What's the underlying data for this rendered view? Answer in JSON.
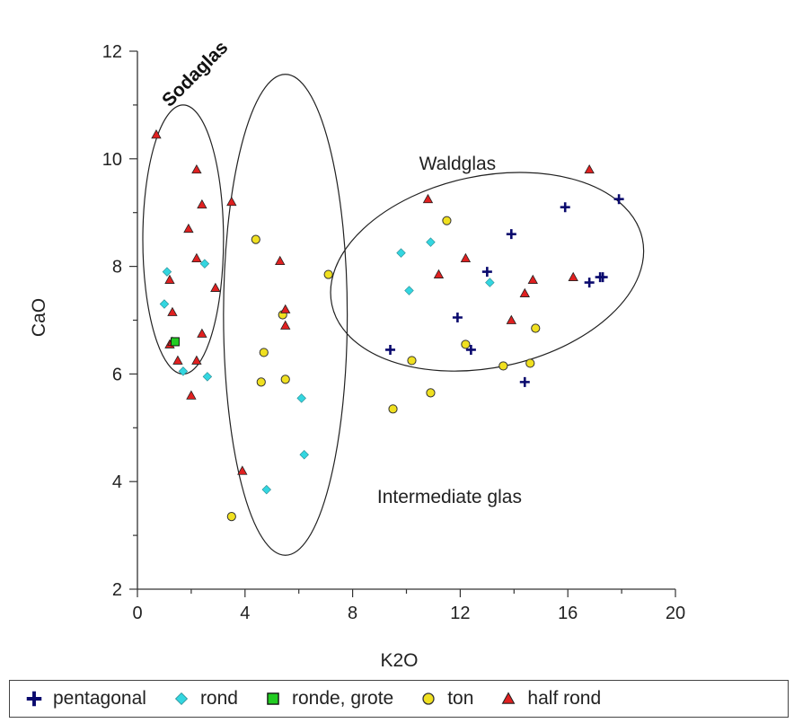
{
  "chart_data": {
    "type": "scatter",
    "xlabel": "K2O",
    "ylabel": "CaO",
    "xlim": [
      0,
      20
    ],
    "ylim": [
      2,
      12
    ],
    "x_ticks": [
      "0",
      "4",
      "8",
      "12",
      "16",
      "20"
    ],
    "y_ticks": [
      "2",
      "4",
      "6",
      "8",
      "10",
      "12"
    ],
    "grid": false,
    "legend_position": "bottom",
    "annotations": [
      {
        "text": "Sodaglas",
        "x": 2.3,
        "y": 11.5,
        "style": "bold-rotated"
      },
      {
        "text": "Waldglas",
        "x": 11.9,
        "y": 9.8
      },
      {
        "text": "Intermediate glas",
        "x": 11.6,
        "y": 3.6
      }
    ],
    "ellipses": [
      {
        "label": "Sodaglas",
        "cx": 1.7,
        "cy": 8.5,
        "rx": 1.5,
        "ry": 2.5
      },
      {
        "label": "Intermediate glas",
        "cx": 5.5,
        "cy": 7.1,
        "rx": 2.3,
        "ry": 4.47
      },
      {
        "label": "Waldglas",
        "cx": 13.0,
        "cy": 7.9,
        "rx": 5.9,
        "ry": 1.78,
        "angle_deg": -12
      }
    ],
    "series": [
      {
        "name": "pentagonal",
        "marker": "plus",
        "color": "#0a0a6e",
        "points": [
          [
            9.4,
            6.45
          ],
          [
            11.9,
            7.05
          ],
          [
            12.4,
            6.45
          ],
          [
            13.0,
            7.9
          ],
          [
            13.9,
            8.6
          ],
          [
            14.4,
            5.85
          ],
          [
            15.9,
            9.1
          ],
          [
            16.8,
            7.7
          ],
          [
            17.2,
            7.8
          ],
          [
            17.3,
            7.8
          ],
          [
            17.9,
            9.25
          ]
        ]
      },
      {
        "name": "rond",
        "marker": "diamond",
        "color": "#33d6e0",
        "points": [
          [
            1.0,
            7.3
          ],
          [
            1.1,
            7.9
          ],
          [
            1.7,
            6.05
          ],
          [
            2.5,
            8.05
          ],
          [
            2.6,
            5.95
          ],
          [
            4.8,
            3.85
          ],
          [
            6.1,
            5.55
          ],
          [
            6.2,
            4.5
          ],
          [
            9.8,
            8.25
          ],
          [
            10.1,
            7.55
          ],
          [
            10.9,
            8.45
          ],
          [
            13.1,
            7.7
          ]
        ]
      },
      {
        "name": "ronde, grote",
        "marker": "square",
        "color": "#22cc22",
        "points": [
          [
            1.4,
            6.6
          ]
        ]
      },
      {
        "name": "ton",
        "marker": "circle",
        "color": "#f0e020",
        "points": [
          [
            3.5,
            3.35
          ],
          [
            4.4,
            8.5
          ],
          [
            4.6,
            5.85
          ],
          [
            4.7,
            6.4
          ],
          [
            5.4,
            7.1
          ],
          [
            5.5,
            5.9
          ],
          [
            7.1,
            7.85
          ],
          [
            9.5,
            5.35
          ],
          [
            10.2,
            6.25
          ],
          [
            10.9,
            5.65
          ],
          [
            11.5,
            8.85
          ],
          [
            12.2,
            6.55
          ],
          [
            13.6,
            6.15
          ],
          [
            14.6,
            6.2
          ],
          [
            14.8,
            6.85
          ]
        ]
      },
      {
        "name": "half rond",
        "marker": "triangle",
        "color": "#e02020",
        "points": [
          [
            0.7,
            10.45
          ],
          [
            1.2,
            6.55
          ],
          [
            1.2,
            7.75
          ],
          [
            1.3,
            7.15
          ],
          [
            1.3,
            6.6
          ],
          [
            1.5,
            6.25
          ],
          [
            1.9,
            8.7
          ],
          [
            2.0,
            5.6
          ],
          [
            2.2,
            9.8
          ],
          [
            2.2,
            8.15
          ],
          [
            2.2,
            6.25
          ],
          [
            2.4,
            9.15
          ],
          [
            2.4,
            6.75
          ],
          [
            2.9,
            7.6
          ],
          [
            3.5,
            9.2
          ],
          [
            3.9,
            4.2
          ],
          [
            5.3,
            8.1
          ],
          [
            5.5,
            7.2
          ],
          [
            5.5,
            6.9
          ],
          [
            10.8,
            9.25
          ],
          [
            11.2,
            7.85
          ],
          [
            12.2,
            8.15
          ],
          [
            13.9,
            7.0
          ],
          [
            14.4,
            7.5
          ],
          [
            14.7,
            7.75
          ],
          [
            16.2,
            7.8
          ],
          [
            16.8,
            9.8
          ]
        ]
      }
    ]
  }
}
